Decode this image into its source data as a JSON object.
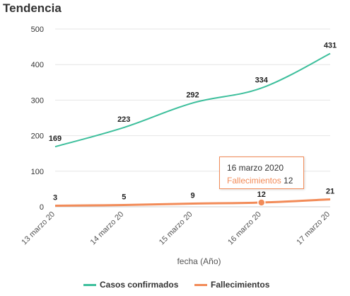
{
  "header": {
    "title": "Tendencia"
  },
  "chart_data": {
    "type": "line",
    "categories": [
      "13 marzo 20",
      "14 marzo 20",
      "15 marzo 20",
      "16 marzo 20",
      "17 marzo 20"
    ],
    "series": [
      {
        "name": "Casos confirmados",
        "values": [
          169,
          223,
          292,
          334,
          431
        ],
        "color": "#3dbf9c"
      },
      {
        "name": "Fallecimientos",
        "values": [
          3,
          5,
          9,
          12,
          21
        ],
        "color": "#f28b58"
      }
    ],
    "xlabel": "fecha (Año)",
    "ylabel": "",
    "ylim": [
      0,
      500
    ],
    "yticks": [
      0,
      100,
      200,
      300,
      400,
      500
    ],
    "grid": true,
    "legend": "bottom"
  },
  "tooltip": {
    "date": "16 marzo 2020",
    "series_label": "Fallecimientos",
    "value": "12"
  }
}
